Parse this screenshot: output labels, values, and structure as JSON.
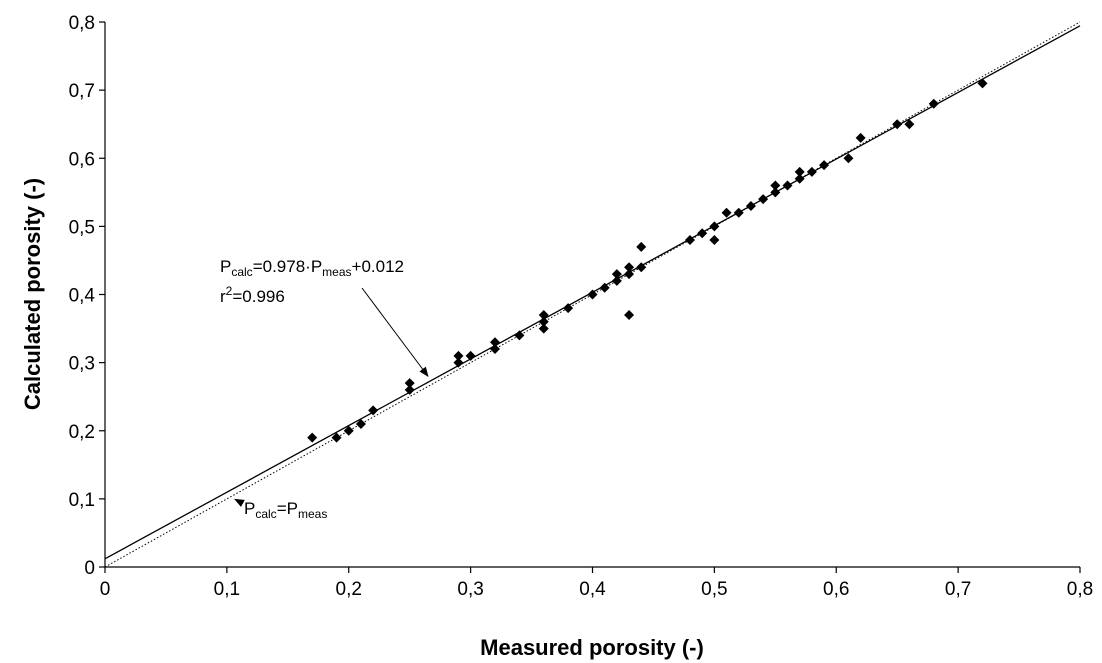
{
  "chart_data": {
    "type": "scatter",
    "xlabel": "Measured porosity (-)",
    "ylabel": "Calculated porosity (-)",
    "xlim": [
      0,
      0.8
    ],
    "ylim": [
      0,
      0.8
    ],
    "x_ticks": [
      "0",
      "0,1",
      "0,2",
      "0,3",
      "0,4",
      "0,5",
      "0,6",
      "0,7",
      "0,8"
    ],
    "y_ticks": [
      "0",
      "0,1",
      "0,2",
      "0,3",
      "0,4",
      "0,5",
      "0,6",
      "0,7",
      "0,8"
    ],
    "grid": false,
    "marker": "diamond",
    "marker_color": "#000000",
    "points": [
      [
        0.17,
        0.19
      ],
      [
        0.19,
        0.19
      ],
      [
        0.2,
        0.2
      ],
      [
        0.21,
        0.21
      ],
      [
        0.22,
        0.23
      ],
      [
        0.25,
        0.26
      ],
      [
        0.25,
        0.27
      ],
      [
        0.29,
        0.3
      ],
      [
        0.29,
        0.31
      ],
      [
        0.3,
        0.31
      ],
      [
        0.32,
        0.32
      ],
      [
        0.32,
        0.33
      ],
      [
        0.34,
        0.34
      ],
      [
        0.36,
        0.35
      ],
      [
        0.36,
        0.36
      ],
      [
        0.36,
        0.37
      ],
      [
        0.38,
        0.38
      ],
      [
        0.4,
        0.4
      ],
      [
        0.41,
        0.41
      ],
      [
        0.42,
        0.42
      ],
      [
        0.42,
        0.43
      ],
      [
        0.43,
        0.43
      ],
      [
        0.43,
        0.44
      ],
      [
        0.43,
        0.37
      ],
      [
        0.44,
        0.44
      ],
      [
        0.44,
        0.47
      ],
      [
        0.48,
        0.48
      ],
      [
        0.49,
        0.49
      ],
      [
        0.5,
        0.48
      ],
      [
        0.5,
        0.5
      ],
      [
        0.51,
        0.52
      ],
      [
        0.52,
        0.52
      ],
      [
        0.53,
        0.53
      ],
      [
        0.54,
        0.54
      ],
      [
        0.55,
        0.55
      ],
      [
        0.55,
        0.56
      ],
      [
        0.56,
        0.56
      ],
      [
        0.57,
        0.57
      ],
      [
        0.57,
        0.58
      ],
      [
        0.58,
        0.58
      ],
      [
        0.59,
        0.59
      ],
      [
        0.61,
        0.6
      ],
      [
        0.62,
        0.63
      ],
      [
        0.65,
        0.65
      ],
      [
        0.66,
        0.65
      ],
      [
        0.68,
        0.68
      ],
      [
        0.72,
        0.71
      ]
    ],
    "fit_line": {
      "slope": 0.978,
      "intercept": 0.012
    },
    "identity_line": {
      "slope": 1,
      "intercept": 0
    },
    "annotations": {
      "fit_equation": {
        "p_sub_calc": "calc",
        "equals_1": "=0.978·P",
        "p_sub_meas": "meas",
        "plus_term": "+0.012",
        "r2_prefix": "r",
        "r2_sup": "2",
        "r2_value": "=0.996",
        "arrow_target": [
          0.265,
          0.28
        ]
      },
      "identity_label": {
        "p_sub_calc": "calc",
        "equals": "=P",
        "p_sub_meas": "meas",
        "arrow_target": [
          0.105,
          0.095
        ]
      }
    }
  }
}
